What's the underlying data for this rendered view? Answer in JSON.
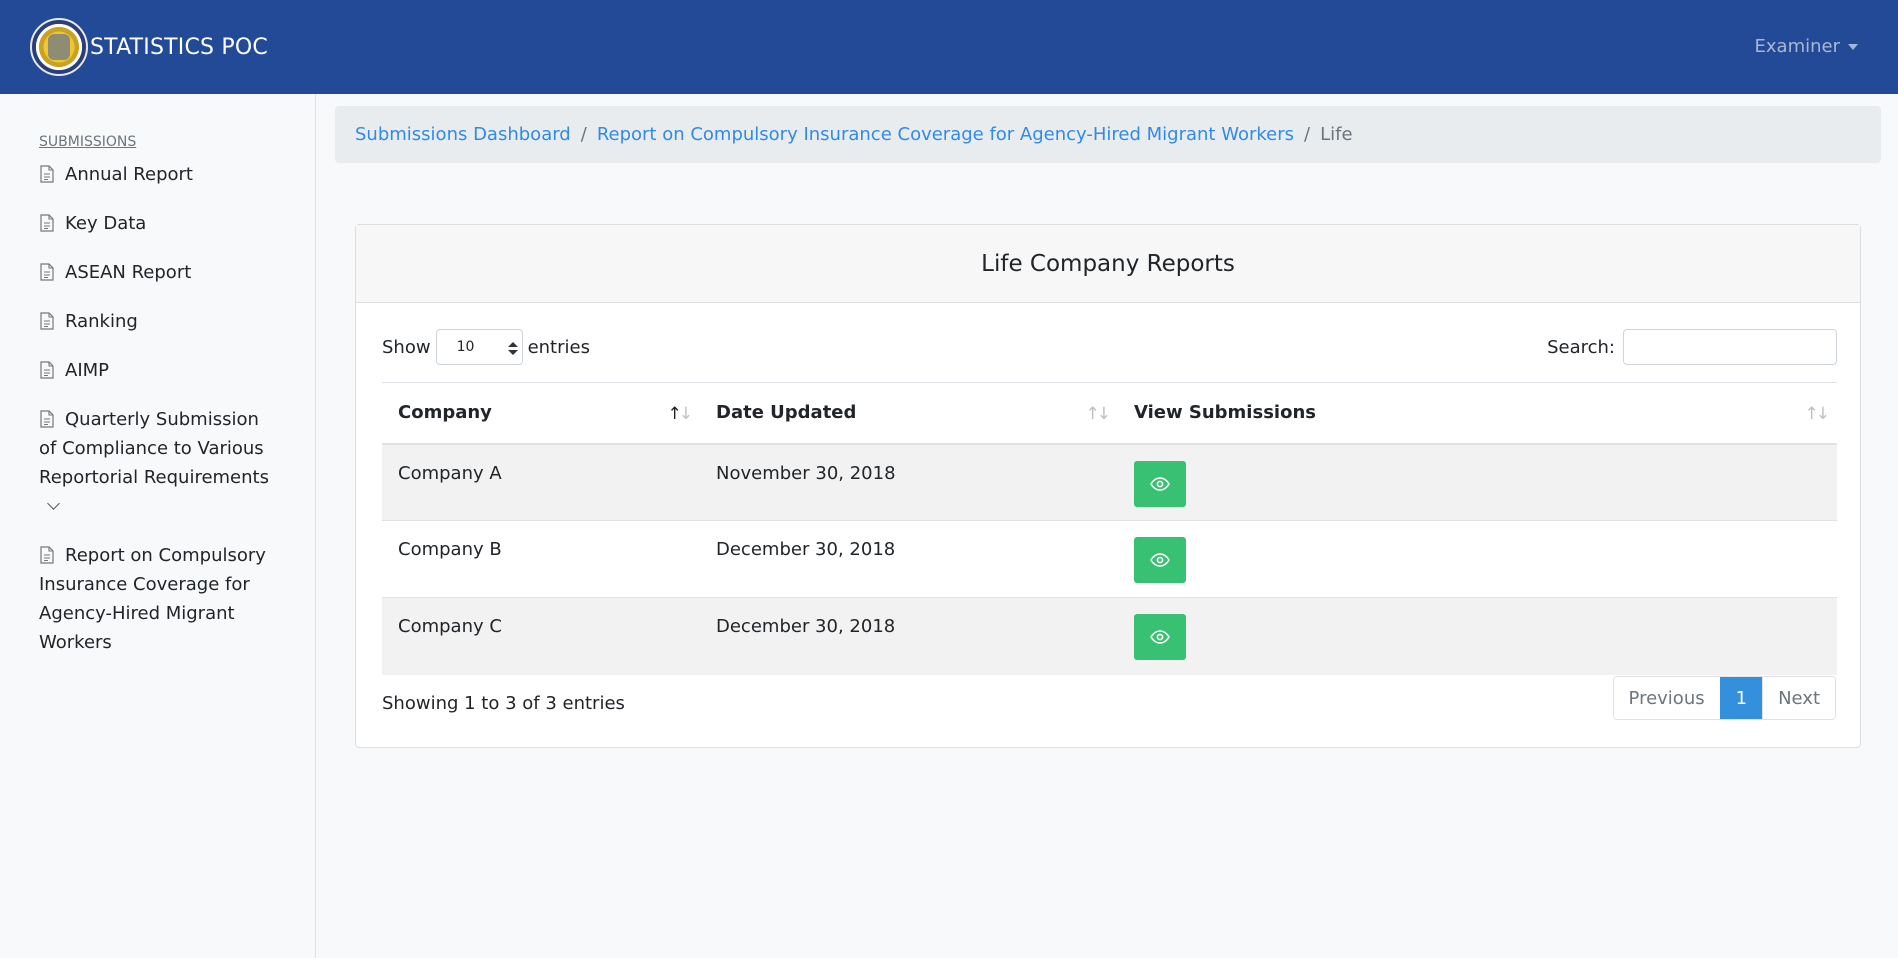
{
  "navbar": {
    "brand": "STATISTICS POC",
    "user": "Examiner"
  },
  "sidebar": {
    "heading": "SUBMISSIONS",
    "items": [
      {
        "label": "Annual Report"
      },
      {
        "label": "Key Data"
      },
      {
        "label": "ASEAN Report"
      },
      {
        "label": "Ranking"
      },
      {
        "label": "AIMP"
      },
      {
        "label": "Quarterly Submission of Compliance to Various Reportorial Requirements"
      },
      {
        "label": "Report on Compulsory Insurance Coverage for Agency-Hired Migrant Workers"
      }
    ]
  },
  "breadcrumb": [
    {
      "label": "Submissions Dashboard"
    },
    {
      "label": "Report on Compulsory Insurance Coverage for Agency-Hired Migrant Workers"
    },
    {
      "label": "Life"
    }
  ],
  "card": {
    "title": "Life Company Reports"
  },
  "controls": {
    "show_label": "Show",
    "entries_value": "10",
    "entries_label": "entries",
    "search_label": "Search:",
    "search_value": ""
  },
  "table": {
    "headers": [
      "Company",
      "Date Updated",
      "View Submissions"
    ],
    "rows": [
      {
        "company": "Company A",
        "date": "November 30, 2018"
      },
      {
        "company": "Company B",
        "date": "December 30, 2018"
      },
      {
        "company": "Company C",
        "date": "December 30, 2018"
      }
    ]
  },
  "footer": {
    "info": "Showing 1 to 3 of 3 entries",
    "prev": "Previous",
    "page": "1",
    "next": "Next"
  },
  "colors": {
    "navbar": "#234a96",
    "link": "#2f8be6",
    "view_button": "#38c172",
    "active_page": "#3490dc"
  }
}
